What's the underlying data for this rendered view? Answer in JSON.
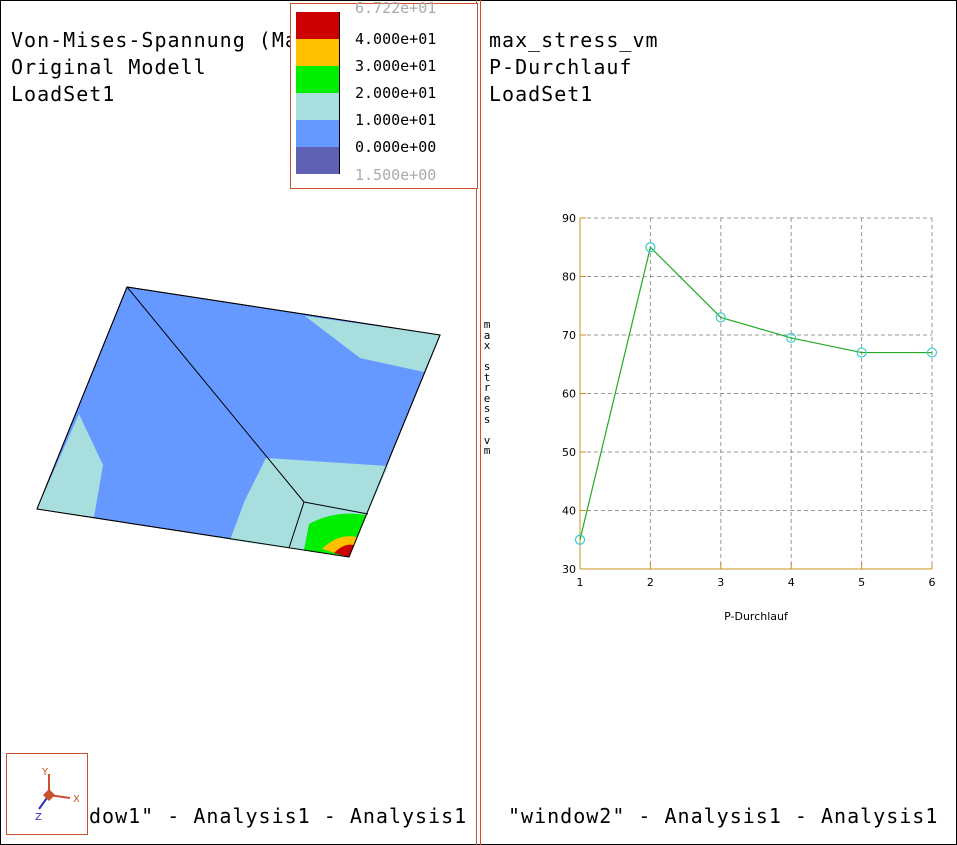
{
  "left_window": {
    "title_lines": [
      "Von-Mises-Spannung (Ma",
      "Original Modell",
      "LoadSet1"
    ],
    "footer": "dow1\" - Analysis1 - Analysis1"
  },
  "right_window": {
    "title_lines": [
      "max_stress_vm",
      "P-Durchlauf",
      "LoadSet1"
    ],
    "footer": "\"window2\" - Analysis1 - Analysis1"
  },
  "legend": {
    "top_label": "6.722e+01",
    "bottom_label": "1.500e+00",
    "bands": [
      {
        "label": "4.000e+01",
        "color": "#cc0000"
      },
      {
        "label": "3.000e+01",
        "color": "#ffc000"
      },
      {
        "label": "2.000e+01",
        "color": "#00ee00"
      },
      {
        "label": "1.000e+01",
        "color": "#a8dede"
      },
      {
        "label": "0.000e+00",
        "color": "#6699ff"
      },
      {
        "label": "",
        "color": "#6060b4"
      }
    ]
  },
  "triad": {
    "x": "X",
    "y": "Y",
    "z": "Z"
  },
  "chart_data": {
    "type": "line",
    "x": [
      1,
      2,
      3,
      4,
      5,
      6
    ],
    "values": [
      35,
      85,
      73,
      69.5,
      67,
      67
    ],
    "xlabel": "P-Durchlauf",
    "ylabel": "max_stress_vm",
    "xlim": [
      1,
      6
    ],
    "ylim": [
      30,
      90
    ],
    "yticks": [
      30,
      40,
      50,
      60,
      70,
      80,
      90
    ],
    "xticks": [
      1,
      2,
      3,
      4,
      5,
      6
    ],
    "grid": true,
    "line_color": "#22aa22",
    "marker_color": "#33cccc",
    "axis_color": "#c89020"
  }
}
